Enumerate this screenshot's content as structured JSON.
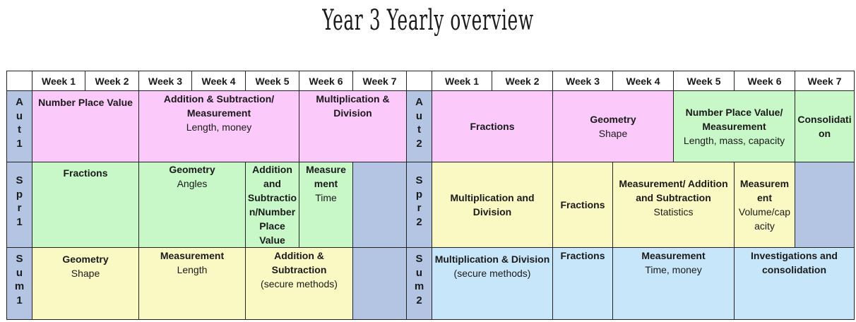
{
  "title": "Year 3 Yearly overview",
  "header": {
    "left_weeks": [
      "Week 1",
      "Week 2",
      "Week 3",
      "Week 4",
      "Week 5",
      "Week 6",
      "Week 7"
    ],
    "right_weeks": [
      "Week 1",
      "Week 2",
      "Week 3",
      "Week 4",
      "Week 5",
      "Week 6",
      "Week 7"
    ]
  },
  "terms": {
    "aut1": [
      "A",
      "u",
      "t",
      "1"
    ],
    "aut2": [
      "A",
      "u",
      "t",
      "2"
    ],
    "spr1": [
      "S",
      "p",
      "r",
      "1"
    ],
    "spr2": [
      "S",
      "p",
      "r",
      "2"
    ],
    "sum1": [
      "S",
      "u",
      "m",
      "1"
    ],
    "sum2": [
      "S",
      "u",
      "m",
      "2"
    ]
  },
  "aut1": {
    "number_place_value": "Number Place Value",
    "add_sub_title": "Addition & Subtraction/ Measurement",
    "add_sub_sub": "Length, money",
    "mult_div": "Multiplication & Division"
  },
  "aut2": {
    "fractions": "Fractions",
    "geometry_title": "Geometry",
    "geometry_sub": "Shape",
    "npv_title": "Number Place Value/ Measurement",
    "npv_sub": "Length, mass, capacity",
    "consolidation": "Consolidati on"
  },
  "spr1": {
    "fractions": "Fractions",
    "geometry_title": "Geometry",
    "geometry_sub": "Angles",
    "add_sub_npv": "Addition and Subtractio n/Number Place Value",
    "measurement_title": "Measure ment",
    "measurement_sub": "Time"
  },
  "spr2": {
    "mult_div": "Multiplication and Division",
    "fractions": "Fractions",
    "meas_title": "Measurement/ Addition and Subtraction",
    "meas_sub": "Statistics",
    "measurement_title": "Measurem ent",
    "measurement_sub": "Volume/cap acity"
  },
  "sum1": {
    "geometry_title": "Geometry",
    "geometry_sub": "Shape",
    "measurement_title": "Measurement",
    "measurement_sub": "Length",
    "add_sub_title": "Addition & Subtraction",
    "add_sub_sub": "(secure methods)"
  },
  "sum2": {
    "mult_div_title": "Multiplication & Division",
    "mult_div_sub": "(secure methods)",
    "fractions": "Fractions",
    "measurement_title": "Measurement",
    "measurement_sub": "Time, money",
    "investigations": "Investigations and consolidation"
  }
}
